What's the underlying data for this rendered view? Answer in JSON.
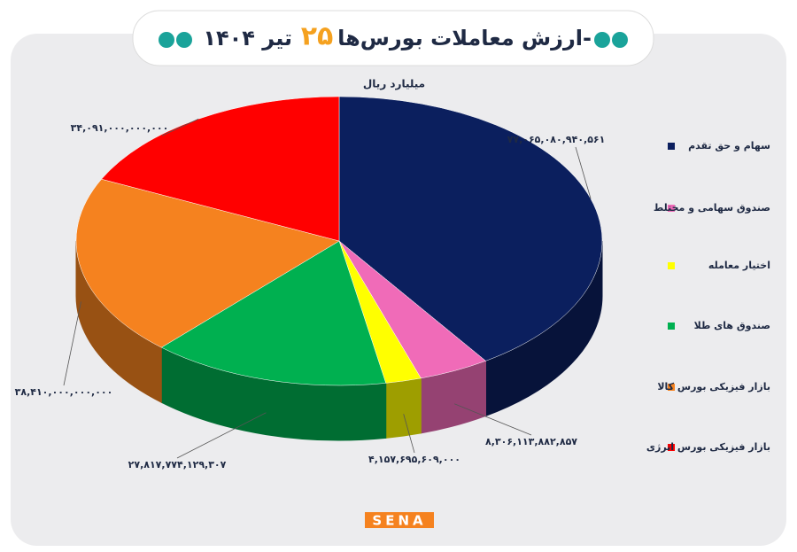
{
  "chart_data": {
    "type": "pie3d",
    "title": "ارزش معاملات بورس‌ها-",
    "title_day": "۲۵",
    "title_month_year": "تیر ۱۴۰۴",
    "subtitle": "میلیارد ریال",
    "categories": [
      "سهام و حق تقدم",
      "صندوق سهامی و مختلط",
      "اختیار معامله",
      "صندوق های طلا",
      "بازار فیزیکی بورس کالا",
      "بازار فیزیکی بورس انرژی"
    ],
    "values": [
      77065080940561,
      8306113882857,
      4157695609000,
      27817774129307,
      38410000000000,
      34091000000000
    ],
    "value_labels": [
      "۷۷,۰۶۵,۰۸۰,۹۴۰,۵۶۱",
      "۸,۳۰۶,۱۱۳,۸۸۲,۸۵۷",
      "۴,۱۵۷,۶۹۵,۶۰۹,۰۰۰",
      "۲۷,۸۱۷,۷۷۴,۱۲۹,۳۰۷",
      "۳۸,۴۱۰,۰۰۰,۰۰۰,۰۰۰",
      "۳۴,۰۹۱,۰۰۰,۰۰۰,۰۰۰"
    ],
    "colors": [
      "#0b1f5e",
      "#f06bb8",
      "#ffff00",
      "#00b050",
      "#f5821f",
      "#ff0000"
    ],
    "legend": "right",
    "logo": "SENA"
  }
}
